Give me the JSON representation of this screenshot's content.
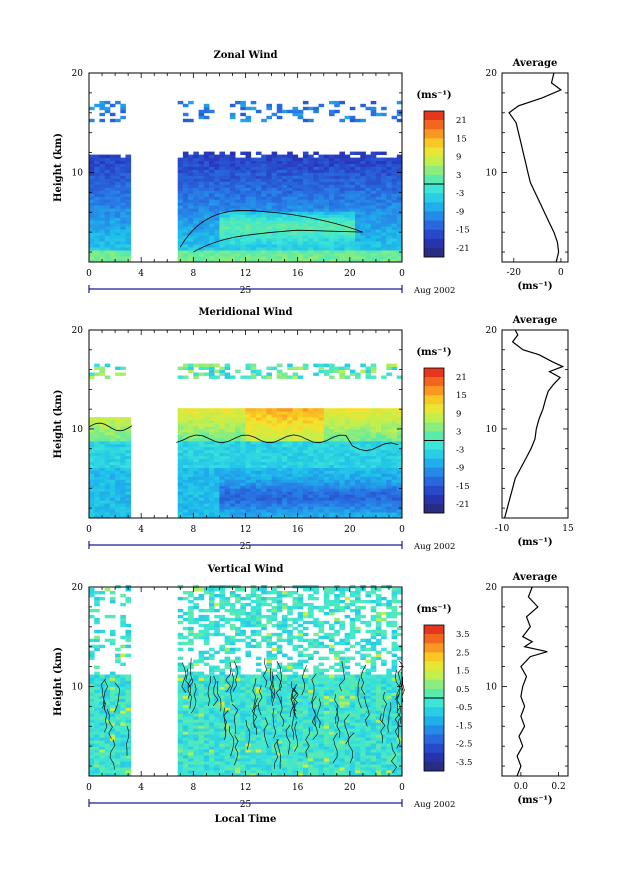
{
  "chart_data": [
    {
      "type": "heatmap",
      "title": "Zonal Wind",
      "ylabel": "Height (km)",
      "unit_label": "(ms⁻¹)",
      "x_ticks": [
        "0",
        "4",
        "8",
        "12",
        "16",
        "20",
        "0"
      ],
      "y_ticks": [
        "20",
        "10"
      ],
      "xlim": [
        0,
        24
      ],
      "ylim": [
        1,
        20
      ],
      "date_label": "25",
      "month_label": "Aug 2002",
      "data_gap_local_time": [
        3.3,
        6.7
      ],
      "colorbar_ticks": [
        "21",
        "15",
        "9",
        "3",
        "-3",
        "-9",
        "-15",
        "-21"
      ],
      "colorbar_range": [
        -24,
        24
      ],
      "profile": {
        "title": "Average",
        "x_ticks": [
          "-20",
          "0"
        ],
        "xlim": [
          -25,
          3
        ],
        "x_unit": "(ms⁻¹)",
        "y_ticks": [
          "20",
          "10"
        ],
        "points": [
          [
            -2,
            1
          ],
          [
            -1,
            2
          ],
          [
            -1.5,
            3
          ],
          [
            -3,
            4
          ],
          [
            -5,
            5
          ],
          [
            -7,
            6
          ],
          [
            -9,
            7
          ],
          [
            -11,
            8
          ],
          [
            -13,
            9
          ],
          [
            -14,
            10
          ],
          [
            -15,
            11
          ],
          [
            -16,
            12
          ],
          [
            -17,
            13
          ],
          [
            -18,
            14
          ],
          [
            -19,
            15
          ],
          [
            -22,
            16
          ],
          [
            -18,
            16.7
          ],
          [
            -8,
            17.5
          ],
          [
            0,
            18.3
          ],
          [
            -4,
            19
          ],
          [
            -3,
            20
          ]
        ]
      }
    },
    {
      "type": "heatmap",
      "title": "Meridional Wind",
      "ylabel": "Height (km)",
      "unit_label": "(ms⁻¹)",
      "x_ticks": [
        "0",
        "4",
        "8",
        "12",
        "16",
        "20",
        "0"
      ],
      "y_ticks": [
        "20",
        "10"
      ],
      "xlim": [
        0,
        24
      ],
      "ylim": [
        1,
        20
      ],
      "date_label": "25",
      "month_label": "Aug 2002",
      "data_gap_local_time": [
        3.3,
        6.7
      ],
      "colorbar_ticks": [
        "21",
        "15",
        "9",
        "3",
        "-3",
        "-9",
        "-15",
        "-21"
      ],
      "colorbar_range": [
        -24,
        24
      ],
      "profile": {
        "title": "Average",
        "x_ticks": [
          "-10",
          "15"
        ],
        "xlim": [
          -10,
          15
        ],
        "x_unit": "(ms⁻¹)",
        "y_ticks": [
          "20",
          "10"
        ],
        "points": [
          [
            -9,
            1
          ],
          [
            -8,
            2
          ],
          [
            -7,
            3
          ],
          [
            -6,
            4
          ],
          [
            -5,
            5
          ],
          [
            -3,
            6
          ],
          [
            -1,
            7
          ],
          [
            1,
            8
          ],
          [
            2.5,
            9
          ],
          [
            3,
            10
          ],
          [
            4,
            11
          ],
          [
            5.5,
            12
          ],
          [
            6.5,
            13
          ],
          [
            7.5,
            13.8
          ],
          [
            9.5,
            14.5
          ],
          [
            12,
            15.2
          ],
          [
            8,
            15.8
          ],
          [
            13,
            16.3
          ],
          [
            9,
            16.8
          ],
          [
            4,
            17.5
          ],
          [
            -2,
            18
          ],
          [
            -6,
            18.8
          ],
          [
            -4,
            19.5
          ],
          [
            -5,
            20
          ]
        ]
      }
    },
    {
      "type": "heatmap",
      "title": "Vertical Wind",
      "ylabel": "Height (km)",
      "xlabel": "Local Time",
      "unit_label": "(ms⁻¹)",
      "x_ticks": [
        "0",
        "4",
        "8",
        "12",
        "16",
        "20",
        "0"
      ],
      "y_ticks": [
        "20",
        "10"
      ],
      "xlim": [
        0,
        24
      ],
      "ylim": [
        1,
        20
      ],
      "date_label": "25",
      "month_label": "Aug 2002",
      "data_gap_local_time": [
        3.3,
        6.7
      ],
      "colorbar_ticks": [
        "3.5",
        "2.5",
        "1.5",
        "0.5",
        "-0.5",
        "-1.5",
        "-2.5",
        "-3.5"
      ],
      "colorbar_range": [
        -4,
        4
      ],
      "profile": {
        "title": "Average",
        "x_ticks": [
          "0.0",
          "0.2"
        ],
        "xlim": [
          -0.1,
          0.25
        ],
        "x_unit": "(ms⁻¹)",
        "y_ticks": [
          "20",
          "10"
        ],
        "points": [
          [
            -0.02,
            1
          ],
          [
            0.0,
            2
          ],
          [
            -0.02,
            3
          ],
          [
            0.01,
            4
          ],
          [
            -0.01,
            5
          ],
          [
            0.02,
            6
          ],
          [
            0.0,
            7
          ],
          [
            0.02,
            8
          ],
          [
            0.0,
            9
          ],
          [
            0.01,
            10
          ],
          [
            0.03,
            11
          ],
          [
            0.0,
            12
          ],
          [
            0.05,
            13
          ],
          [
            0.14,
            13.5
          ],
          [
            0.02,
            14
          ],
          [
            0.06,
            14.5
          ],
          [
            0.01,
            15
          ],
          [
            0.05,
            16
          ],
          [
            0.03,
            17
          ],
          [
            0.09,
            18
          ],
          [
            0.04,
            19
          ],
          [
            0.06,
            20
          ]
        ]
      }
    }
  ]
}
